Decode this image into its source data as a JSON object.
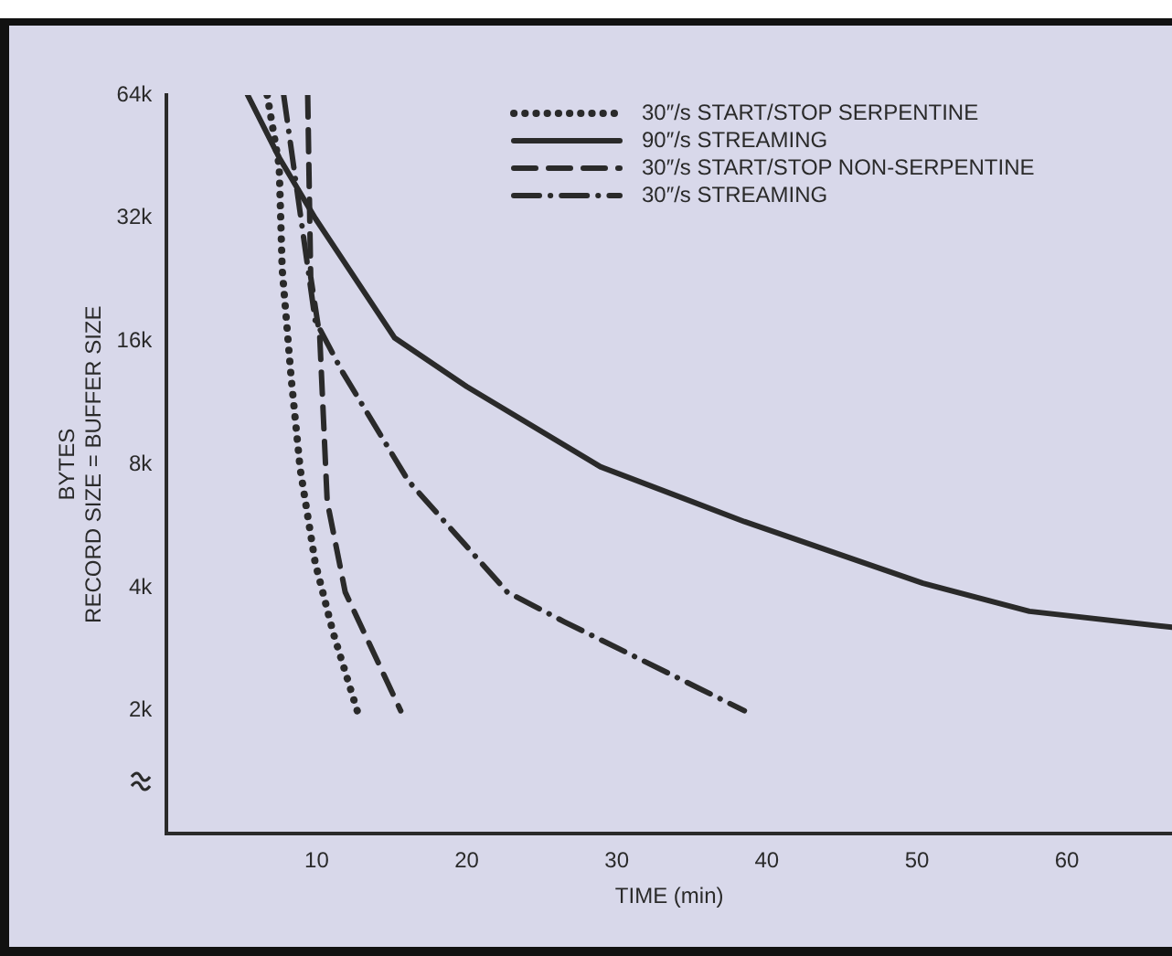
{
  "chart_data": {
    "type": "line",
    "xlabel": "TIME (min)",
    "ylabel": "BYTES\nRECORD SIZE = BUFFER SIZE",
    "log": "y",
    "grid": false,
    "legend": "top right",
    "marker": "none",
    "xlim": [
      0,
      67
    ],
    "xticks": [
      10,
      20,
      30,
      40,
      50,
      60
    ],
    "ylim": [
      1,
      64
    ],
    "yticks": [
      {
        "value": 2,
        "label": "2k"
      },
      {
        "value": 4,
        "label": "4k"
      },
      {
        "value": 8,
        "label": "8k"
      },
      {
        "value": 16,
        "label": "16k"
      },
      {
        "value": 32,
        "label": "32k"
      },
      {
        "value": 64,
        "label": "64k"
      }
    ],
    "series": [
      {
        "name": "30″/s START/STOP SERPENTINE",
        "color": "#2a2a2a",
        "line_style": "dotted",
        "x": [
          6.7,
          7.5,
          7.7,
          8.3,
          8.9,
          9.9,
          11.1,
          12.7
        ],
        "values": [
          64,
          43,
          24,
          13,
          7.8,
          4.6,
          3.1,
          2
        ]
      },
      {
        "name": "90″/s STREAMING",
        "color": "#2a2a2a",
        "line_style": "solid",
        "x": [
          5.4,
          7.5,
          9.9,
          15.2,
          20,
          28.9,
          38.5,
          50.4,
          57.5,
          67
        ],
        "values": [
          64,
          45,
          32,
          16.3,
          12.4,
          7.9,
          5.8,
          4.1,
          3.5,
          3.2
        ]
      },
      {
        "name": "30″/s START/STOP NON-SERPENTINE",
        "color": "#2a2a2a",
        "line_style": "dashed",
        "x": [
          9.4,
          9.6,
          10.2,
          10.7,
          11.9,
          15.6
        ],
        "values": [
          64,
          23,
          16.5,
          6.5,
          3.9,
          2
        ]
      },
      {
        "name": "30″/s STREAMING",
        "color": "#2a2a2a",
        "line_style": "dashdot",
        "x": [
          7.8,
          9.9,
          11.7,
          16.1,
          22.7,
          26.5,
          38.5
        ],
        "values": [
          64,
          18,
          13.5,
          7.3,
          3.9,
          3.3,
          2
        ]
      }
    ]
  }
}
